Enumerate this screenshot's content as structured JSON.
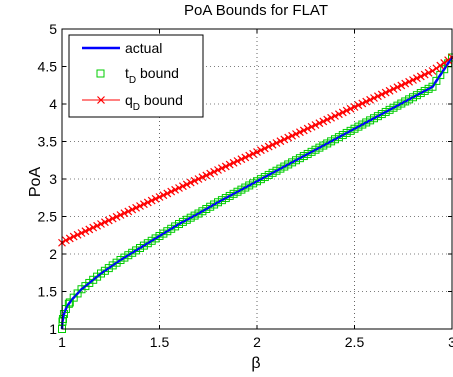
{
  "chart_data": {
    "type": "line",
    "title": "PoA Bounds for FLAT",
    "xlabel": "β",
    "ylabel": "PoA",
    "xlim": [
      1,
      3
    ],
    "ylim": [
      1,
      5
    ],
    "xticks": [
      "1",
      "1.5",
      "2",
      "2.5",
      "3"
    ],
    "yticks": [
      "1",
      "1.5",
      "2",
      "2.5",
      "3",
      "3.5",
      "4",
      "4.5",
      "5"
    ],
    "grid": true,
    "legend_position": "top-left",
    "x": [
      1.0,
      1.0025,
      1.01,
      1.025,
      1.05,
      1.1,
      1.2,
      1.3,
      1.4,
      1.5,
      1.6,
      1.7,
      1.8,
      1.9,
      2.0,
      2.1,
      2.2,
      2.3,
      2.4,
      2.5,
      2.6,
      2.7,
      2.8,
      2.9,
      3.0
    ],
    "series": [
      {
        "name": "actual",
        "color": "#0000ff",
        "marker": "none",
        "values": [
          1.0,
          1.1,
          1.2,
          1.3,
          1.39,
          1.53,
          1.74,
          1.92,
          2.08,
          2.24,
          2.4,
          2.54,
          2.69,
          2.83,
          2.97,
          3.11,
          3.25,
          3.39,
          3.53,
          3.67,
          3.81,
          3.95,
          4.09,
          4.23,
          4.62
        ]
      },
      {
        "name": "t",
        "name_subscript": "D",
        "name_suffix": " bound",
        "color": "#00cc00",
        "marker": "square",
        "values": [
          1.0,
          1.1,
          1.2,
          1.3,
          1.39,
          1.53,
          1.74,
          1.92,
          2.08,
          2.24,
          2.4,
          2.54,
          2.69,
          2.83,
          2.97,
          3.11,
          3.25,
          3.39,
          3.53,
          3.67,
          3.81,
          3.95,
          4.09,
          4.23,
          4.62
        ]
      },
      {
        "name": "q",
        "name_subscript": "D",
        "name_suffix": " bound",
        "color": "#ff0000",
        "marker": "x",
        "values": [
          2.15,
          2.16,
          2.17,
          2.19,
          2.22,
          2.28,
          2.4,
          2.52,
          2.64,
          2.76,
          2.88,
          3.0,
          3.12,
          3.24,
          3.36,
          3.48,
          3.6,
          3.72,
          3.84,
          3.96,
          4.08,
          4.2,
          4.32,
          4.44,
          4.62
        ]
      }
    ]
  }
}
